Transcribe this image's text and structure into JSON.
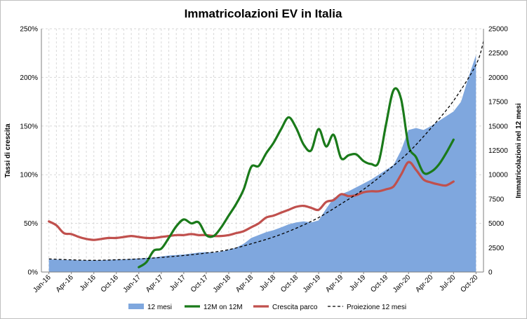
{
  "chart_data": {
    "type": "line",
    "title": "Immatricolazioni EV in Italia",
    "ylabel_left": "Tassi di crescita",
    "ylabel_right": "Immatricolazioni nel 12 mesi",
    "y_left_ticks": [
      "0%",
      "50%",
      "100%",
      "150%",
      "200%",
      "250%"
    ],
    "y_left_range": [
      0,
      250
    ],
    "y_right_ticks": [
      "0",
      "2500",
      "5000",
      "7500",
      "10000",
      "12500",
      "15000",
      "17500",
      "20000",
      "22500",
      "25000"
    ],
    "y_right_range": [
      0,
      25000
    ],
    "x_tick_labels": [
      "Jan-16",
      "Apr-16",
      "Jul-16",
      "Oct-16",
      "Jan-17",
      "Apr-17",
      "Jul-17",
      "Oct-17",
      "Jan-18",
      "Apr-18",
      "Jul-18",
      "Oct-18",
      "Jan-19",
      "Apr-19",
      "Jul-19",
      "Oct-19",
      "Jan-20",
      "Apr-20",
      "Jul-20",
      "Oct-20"
    ],
    "x_domain": [
      -1,
      58
    ],
    "series": [
      {
        "name": "12 mesi",
        "axis": "right",
        "style": "area",
        "color": "#7fa7de",
        "x": [
          0,
          1,
          2,
          3,
          4,
          5,
          6,
          7,
          8,
          9,
          10,
          11,
          12,
          13,
          14,
          15,
          16,
          17,
          18,
          19,
          20,
          21,
          22,
          23,
          24,
          25,
          26,
          27,
          28,
          29,
          30,
          31,
          32,
          33,
          34,
          35,
          36,
          37,
          38,
          39,
          40,
          41,
          42,
          43,
          44,
          45,
          46,
          47,
          48,
          49,
          50,
          51,
          52,
          53,
          54,
          55,
          56,
          57
        ],
        "values": [
          1300,
          1280,
          1250,
          1250,
          1200,
          1200,
          1200,
          1220,
          1250,
          1280,
          1300,
          1350,
          1400,
          1450,
          1500,
          1600,
          1700,
          1750,
          1800,
          1900,
          2000,
          2050,
          2000,
          2100,
          2300,
          2500,
          2900,
          3500,
          3800,
          4100,
          4300,
          4600,
          4900,
          5100,
          5200,
          5100,
          5300,
          6500,
          7600,
          8000,
          8300,
          8700,
          9100,
          9500,
          10000,
          10500,
          11000,
          12500,
          14600,
          14800,
          14600,
          15000,
          15500,
          16000,
          16500,
          17500,
          20000,
          22300
        ]
      },
      {
        "name": "12M on 12M",
        "axis": "left",
        "style": "line",
        "color": "#1a7a1a",
        "x": [
          12,
          13,
          14,
          15,
          16,
          17,
          18,
          19,
          20,
          21,
          22,
          23,
          24,
          25,
          26,
          27,
          28,
          29,
          30,
          31,
          32,
          33,
          34,
          35,
          36,
          37,
          38,
          39,
          40,
          41,
          42,
          43,
          44,
          45,
          46,
          47,
          48,
          49,
          50,
          51,
          52,
          53,
          54,
          55,
          56,
          57
        ],
        "values": [
          5,
          10,
          22,
          24,
          35,
          47,
          54,
          50,
          51,
          38,
          37,
          46,
          58,
          70,
          85,
          108,
          109,
          122,
          133,
          147,
          159,
          148,
          131,
          125,
          147,
          129,
          141,
          117,
          120,
          121,
          114,
          111,
          113,
          152,
          187,
          178,
          130,
          118,
          102,
          103,
          110,
          122,
          136,
          null,
          null,
          null
        ]
      },
      {
        "name": "Crescita parco",
        "axis": "left",
        "style": "line",
        "color": "#c0504d",
        "x": [
          0,
          1,
          2,
          3,
          4,
          5,
          6,
          7,
          8,
          9,
          10,
          11,
          12,
          13,
          14,
          15,
          16,
          17,
          18,
          19,
          20,
          21,
          22,
          23,
          24,
          25,
          26,
          27,
          28,
          29,
          30,
          31,
          32,
          33,
          34,
          35,
          36,
          37,
          38,
          39,
          40,
          41,
          42,
          43,
          44,
          45,
          46,
          47,
          48,
          49,
          50,
          51,
          52,
          53,
          54
        ],
        "values": [
          52,
          48,
          40,
          39,
          36,
          34,
          33,
          34,
          35,
          35,
          36,
          37,
          36,
          35,
          35,
          36,
          37,
          38,
          38,
          39,
          38,
          38,
          37,
          37,
          38,
          40,
          42,
          46,
          50,
          56,
          58,
          61,
          64,
          67,
          68,
          66,
          64,
          72,
          74,
          80,
          78,
          79,
          82,
          83,
          83,
          85,
          88,
          100,
          113,
          105,
          95,
          92,
          90,
          89,
          93
        ]
      },
      {
        "name": "Proiezione 12 mesi",
        "axis": "right",
        "style": "dashed",
        "color": "#000000",
        "x": [
          0,
          3,
          6,
          9,
          12,
          15,
          18,
          21,
          24,
          27,
          30,
          33,
          36,
          39,
          42,
          45,
          48,
          51,
          54,
          57,
          58
        ],
        "values": [
          1350,
          1250,
          1200,
          1260,
          1350,
          1500,
          1700,
          1950,
          2300,
          2900,
          3600,
          4500,
          5600,
          7000,
          8500,
          10300,
          12300,
          14800,
          17600,
          21300,
          23700
        ]
      }
    ]
  }
}
